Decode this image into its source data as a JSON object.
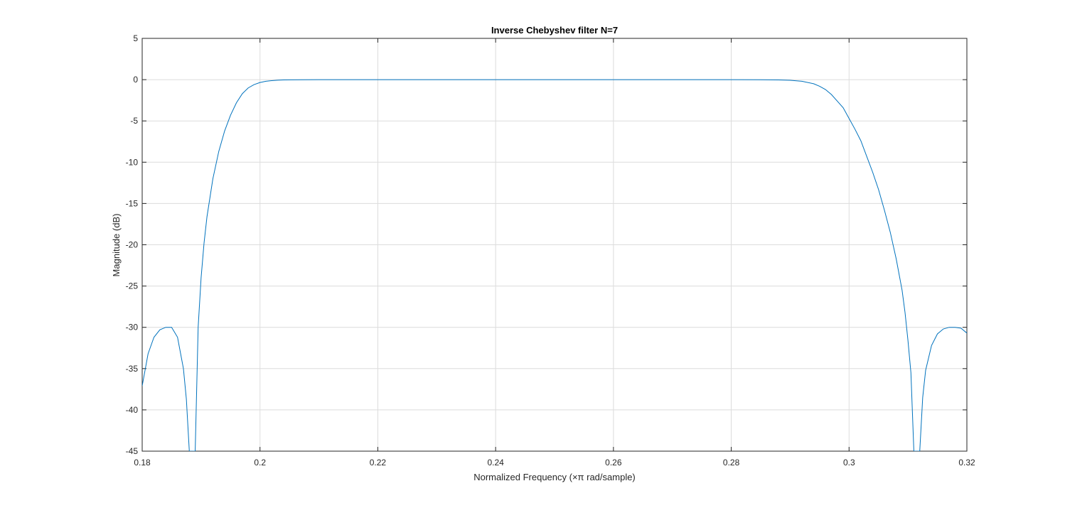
{
  "chart_data": {
    "type": "line",
    "title": "Inverse Chebyshev filter N=7",
    "xlabel": "Normalized Frequency (×π rad/sample)",
    "ylabel": "Magnitude (dB)",
    "xlim": [
      0.18,
      0.32
    ],
    "ylim": [
      -45,
      5
    ],
    "xticks": [
      0.18,
      0.2,
      0.22,
      0.24,
      0.26,
      0.28,
      0.3,
      0.32
    ],
    "xtick_labels": [
      "0.18",
      "0.2",
      "0.22",
      "0.24",
      "0.26",
      "0.28",
      "0.3",
      "0.32"
    ],
    "yticks": [
      5,
      0,
      -5,
      -10,
      -15,
      -20,
      -25,
      -30,
      -35,
      -40,
      -45
    ],
    "ytick_labels": [
      "5",
      "0",
      "-5",
      "-10",
      "-15",
      "-20",
      "-25",
      "-30",
      "-35",
      "-40",
      "-45"
    ],
    "grid": true,
    "line_color": "#0072BD",
    "grid_color": "#dcdcdc",
    "series": [
      {
        "x": [
          0.18,
          0.181,
          0.182,
          0.183,
          0.184,
          0.185,
          0.186,
          0.187,
          0.1875,
          0.188,
          0.1885,
          0.189,
          0.1895,
          0.19,
          0.1905,
          0.191,
          0.192,
          0.193,
          0.194,
          0.195,
          0.196,
          0.197,
          0.198,
          0.199,
          0.2,
          0.201,
          0.202,
          0.203,
          0.204,
          0.205,
          0.207,
          0.21,
          0.22,
          0.24,
          0.26,
          0.28,
          0.285,
          0.288,
          0.29,
          0.292,
          0.294,
          0.295,
          0.296,
          0.297,
          0.298,
          0.299,
          0.3,
          0.301,
          0.302,
          0.303,
          0.304,
          0.305,
          0.306,
          0.307,
          0.308,
          0.309,
          0.3095,
          0.31,
          0.3105,
          0.311,
          0.3115,
          0.312,
          0.3125,
          0.313,
          0.314,
          0.315,
          0.316,
          0.317,
          0.318,
          0.319,
          0.32
        ],
        "y": [
          -37.1,
          -33.2,
          -31.2,
          -30.3,
          -30.0,
          -30.0,
          -31.2,
          -35.0,
          -38.7,
          -45,
          -45,
          -45,
          -30.0,
          -24.0,
          -19.8,
          -16.6,
          -12.0,
          -8.7,
          -6.2,
          -4.3,
          -2.8,
          -1.7,
          -1.0,
          -0.6,
          -0.35,
          -0.2,
          -0.12,
          -0.07,
          -0.04,
          -0.02,
          -0.01,
          0,
          0,
          0,
          0,
          0,
          -0.01,
          -0.03,
          -0.08,
          -0.2,
          -0.5,
          -0.8,
          -1.2,
          -1.8,
          -2.6,
          -3.4,
          -4.7,
          -6.0,
          -7.4,
          -9.3,
          -11.2,
          -13.3,
          -15.8,
          -18.5,
          -21.7,
          -25.5,
          -28.2,
          -31.6,
          -35.5,
          -45,
          -45,
          -45,
          -38.5,
          -35.2,
          -32.2,
          -30.8,
          -30.2,
          -30.0,
          -30.0,
          -30.1,
          -30.7
        ]
      }
    ]
  }
}
